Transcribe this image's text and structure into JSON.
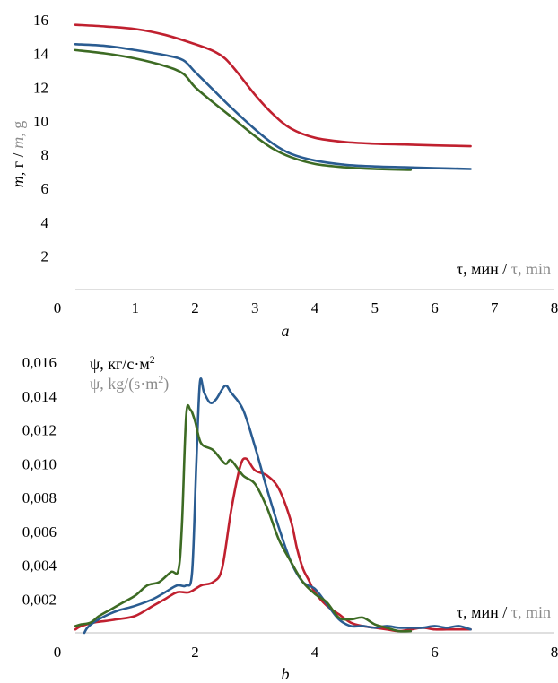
{
  "chart_data": [
    {
      "id": "a",
      "type": "line",
      "caption": "a",
      "xlim": [
        0,
        8
      ],
      "ylim": [
        0,
        16
      ],
      "x_ticks": [
        0,
        1,
        2,
        3,
        4,
        5,
        6,
        7,
        8
      ],
      "y_ticks": [
        2,
        4,
        6,
        8,
        10,
        12,
        14,
        16
      ],
      "x_tick_labels": [
        "0",
        "1",
        "2",
        "3",
        "4",
        "5",
        "6",
        "7",
        "8"
      ],
      "y_tick_labels": [
        "2",
        "4",
        "6",
        "8",
        "10",
        "12",
        "14",
        "16"
      ],
      "ylabel_ru_var": "m",
      "ylabel_ru_unit": ", г",
      "ylabel_sep": " / ",
      "ylabel_en_var": "m",
      "ylabel_en_unit": ", g",
      "xlabel_ru": "τ, мин",
      "xlabel_sep": " / ",
      "xlabel_en": "τ, min",
      "grid": false,
      "series": [
        {
          "color": "#c0202f",
          "x": [
            0,
            0.5,
            1.0,
            1.5,
            2.0,
            2.3,
            2.5,
            2.7,
            3.0,
            3.3,
            3.6,
            4.0,
            4.5,
            5.0,
            5.5,
            6.0,
            6.6
          ],
          "y": [
            15.7,
            15.6,
            15.45,
            15.1,
            14.55,
            14.15,
            13.7,
            12.9,
            11.55,
            10.4,
            9.55,
            9.0,
            8.75,
            8.65,
            8.6,
            8.55,
            8.5
          ]
        },
        {
          "color": "#2a5c91",
          "x": [
            0,
            0.5,
            1.0,
            1.5,
            1.8,
            2.0,
            2.3,
            2.6,
            3.0,
            3.3,
            3.6,
            4.0,
            4.5,
            5.0,
            5.5,
            6.0,
            6.6
          ],
          "y": [
            14.55,
            14.45,
            14.2,
            13.9,
            13.6,
            12.9,
            11.85,
            10.8,
            9.5,
            8.65,
            8.05,
            7.65,
            7.4,
            7.3,
            7.25,
            7.2,
            7.15
          ]
        },
        {
          "color": "#3d6b24",
          "x": [
            0,
            0.5,
            1.0,
            1.5,
            1.8,
            2.0,
            2.3,
            2.6,
            3.0,
            3.3,
            3.6,
            4.0,
            4.5,
            5.0,
            5.6
          ],
          "y": [
            14.2,
            14.0,
            13.7,
            13.25,
            12.8,
            12.0,
            11.1,
            10.25,
            9.1,
            8.35,
            7.85,
            7.45,
            7.25,
            7.15,
            7.1
          ]
        }
      ]
    },
    {
      "id": "b",
      "type": "line",
      "caption": "b",
      "xlim": [
        0,
        8
      ],
      "ylim": [
        0,
        0.016
      ],
      "x_ticks": [
        0,
        2,
        4,
        6,
        8
      ],
      "y_ticks": [
        0.002,
        0.004,
        0.006,
        0.008,
        0.01,
        0.012,
        0.014,
        0.016
      ],
      "x_tick_labels": [
        "0",
        "2",
        "4",
        "6",
        "8"
      ],
      "y_tick_labels": [
        "0,002",
        "0,004",
        "0,006",
        "0,008",
        "0,010",
        "0,012",
        "0,014",
        "0,016"
      ],
      "ylabel_ru_main": "ψ, кг/с·м",
      "ylabel_ru_sup": "2",
      "ylabel_en_main": "ψ, kg/(s·m",
      "ylabel_en_sup": "2",
      "ylabel_en_close": ")",
      "xlabel_ru": "τ, мин",
      "xlabel_sep": " / ",
      "xlabel_en": "τ, min",
      "grid": false,
      "series": [
        {
          "color": "#c0202f",
          "x": [
            0,
            0.1,
            0.3,
            0.5,
            0.7,
            1.0,
            1.3,
            1.5,
            1.7,
            1.9,
            2.1,
            2.3,
            2.45,
            2.6,
            2.75,
            2.85,
            3.0,
            3.2,
            3.4,
            3.6,
            3.7,
            3.8,
            3.9,
            4.0,
            4.2,
            4.4,
            4.6,
            4.8,
            5.0,
            5.2,
            5.4,
            5.6,
            5.8,
            6.0,
            6.2,
            6.4,
            6.6
          ],
          "y": [
            0.0002,
            0.0004,
            0.0006,
            0.0007,
            0.0008,
            0.001,
            0.0016,
            0.002,
            0.0024,
            0.0024,
            0.0028,
            0.003,
            0.0038,
            0.0072,
            0.0098,
            0.0103,
            0.0096,
            0.0093,
            0.0085,
            0.0066,
            0.005,
            0.0038,
            0.0031,
            0.0024,
            0.0016,
            0.0011,
            0.0006,
            0.0004,
            0.0003,
            0.0002,
            0.0001,
            0.0002,
            0.0003,
            0.0002,
            0.0002,
            0.0002,
            0.0002
          ]
        },
        {
          "color": "#2a5c91",
          "x": [
            0.15,
            0.2,
            0.3,
            0.5,
            0.7,
            1.0,
            1.3,
            1.5,
            1.7,
            1.85,
            1.95,
            2.02,
            2.08,
            2.15,
            2.25,
            2.35,
            2.5,
            2.6,
            2.8,
            3.0,
            3.2,
            3.4,
            3.6,
            3.8,
            4.0,
            4.2,
            4.4,
            4.6,
            4.8,
            5.0,
            5.2,
            5.4,
            5.6,
            5.8,
            6.0,
            6.2,
            6.4,
            6.6
          ],
          "y": [
            0.0,
            0.0003,
            0.0006,
            0.001,
            0.0013,
            0.0016,
            0.002,
            0.0024,
            0.0028,
            0.0028,
            0.0036,
            0.01,
            0.0148,
            0.0142,
            0.0136,
            0.0138,
            0.0146,
            0.0142,
            0.0132,
            0.011,
            0.0085,
            0.0062,
            0.0042,
            0.003,
            0.0026,
            0.0017,
            0.0008,
            0.0004,
            0.0004,
            0.0003,
            0.0004,
            0.0003,
            0.0003,
            0.0003,
            0.0004,
            0.0003,
            0.0004,
            0.0002
          ]
        },
        {
          "color": "#3d6b24",
          "x": [
            0,
            0.1,
            0.25,
            0.4,
            0.6,
            0.8,
            1.0,
            1.2,
            1.4,
            1.6,
            1.72,
            1.78,
            1.85,
            1.92,
            2.0,
            2.1,
            2.3,
            2.5,
            2.6,
            2.8,
            3.0,
            3.2,
            3.4,
            3.6,
            3.8,
            4.0,
            4.2,
            4.4,
            4.6,
            4.8,
            5.0,
            5.2,
            5.4,
            5.6
          ],
          "y": [
            0.0004,
            0.0005,
            0.0006,
            0.001,
            0.0014,
            0.0018,
            0.0022,
            0.0028,
            0.003,
            0.0036,
            0.0037,
            0.0064,
            0.0128,
            0.0132,
            0.0125,
            0.0112,
            0.0108,
            0.01,
            0.0102,
            0.0093,
            0.0088,
            0.0074,
            0.0055,
            0.0042,
            0.003,
            0.0023,
            0.0018,
            0.0009,
            0.0008,
            0.0009,
            0.0005,
            0.0003,
            0.0001,
            0.0001
          ]
        }
      ]
    }
  ]
}
